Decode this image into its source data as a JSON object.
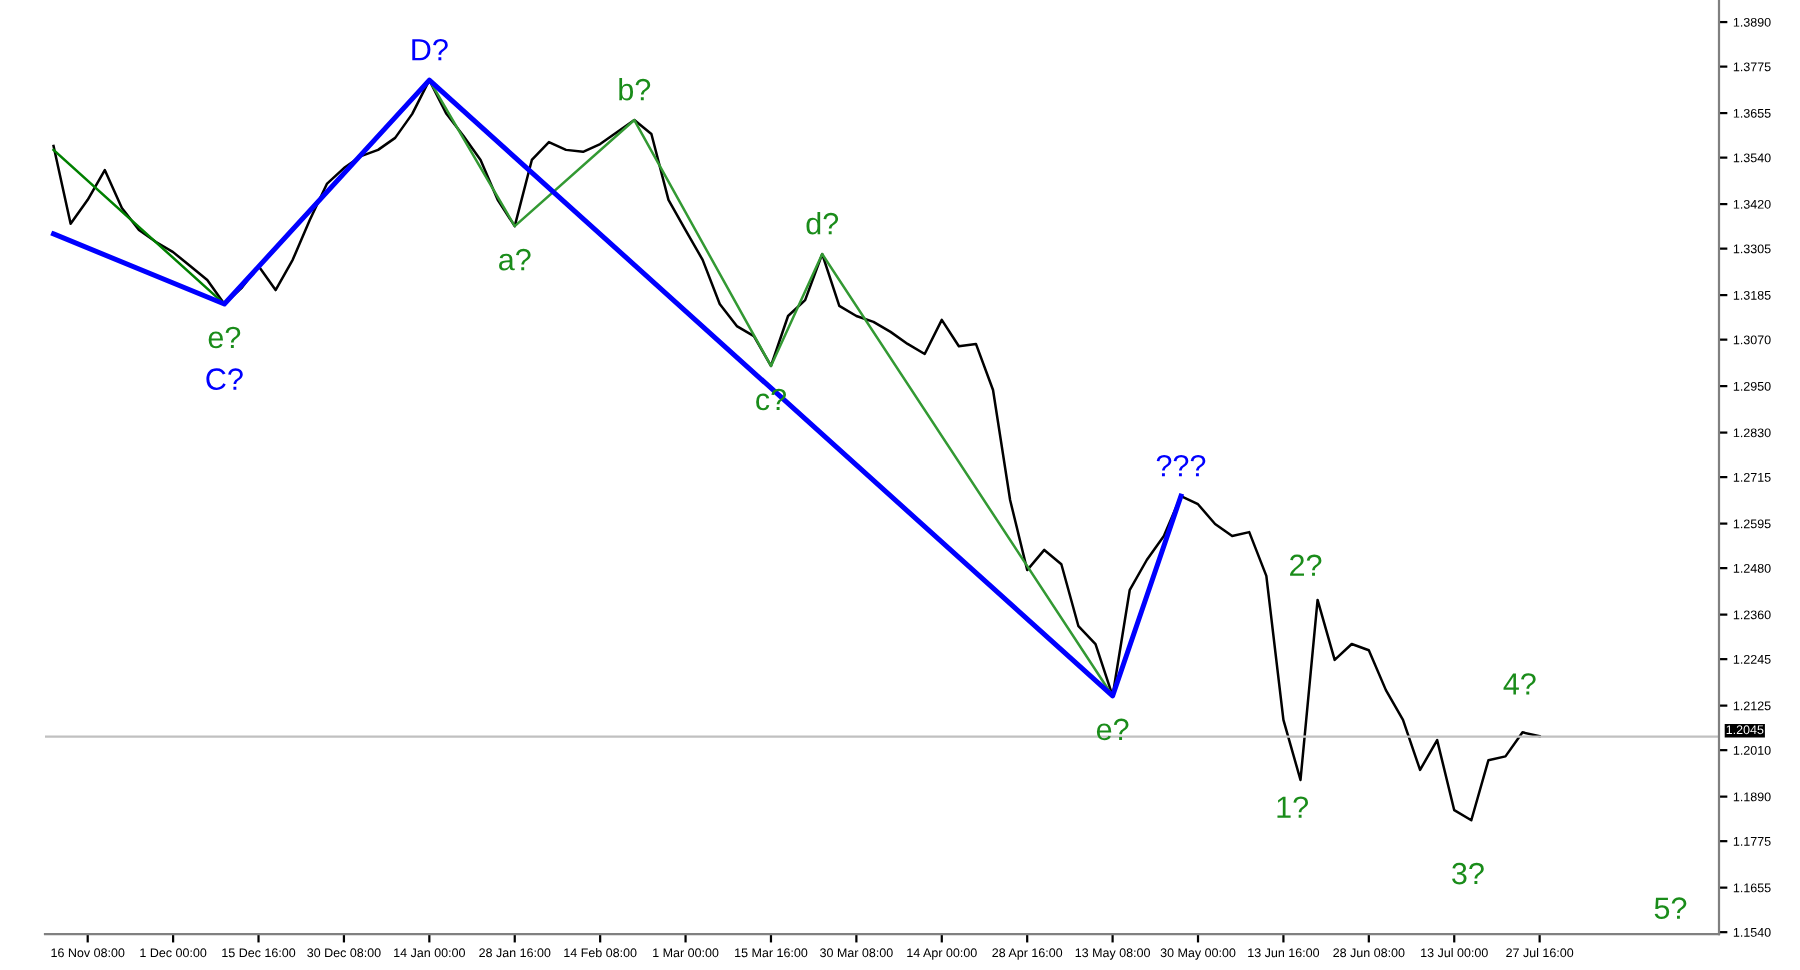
{
  "chart_data": {
    "type": "line",
    "categories": [
      null,
      null,
      "16 Nov 08:00",
      null,
      null,
      null,
      null,
      "1 Dec 00:00",
      null,
      null,
      null,
      null,
      "15 Dec 16:00",
      null,
      null,
      null,
      null,
      "30 Dec 08:00",
      null,
      null,
      null,
      null,
      "14 Jan 00:00",
      null,
      null,
      null,
      null,
      "28 Jan 16:00",
      null,
      null,
      null,
      null,
      "14 Feb 08:00",
      null,
      null,
      null,
      null,
      "1 Mar 00:00",
      null,
      null,
      null,
      null,
      "15 Mar 16:00",
      null,
      null,
      null,
      null,
      "30 Mar 08:00",
      null,
      null,
      null,
      null,
      "14 Apr 00:00",
      null,
      null,
      null,
      null,
      "28 Apr 16:00",
      null,
      null,
      null,
      null,
      "13 May 08:00",
      null,
      null,
      null,
      null,
      "30 May 00:00",
      null,
      null,
      null,
      null,
      "13 Jun 16:00",
      null,
      null,
      null,
      null,
      "28 Jun 08:00",
      null,
      null,
      null,
      null,
      "13 Jul 00:00",
      null,
      null,
      null,
      null,
      "27 Jul 16:00",
      null,
      null,
      null,
      null,
      null,
      null,
      null,
      null,
      null,
      null
    ],
    "ylim": [
      1.1535,
      1.3947
    ],
    "yticks": [
      {
        "value": 1.389,
        "label": "1.3890"
      },
      {
        "value": 1.3775,
        "label": "1.3775"
      },
      {
        "value": 1.3655,
        "label": "1.3655"
      },
      {
        "value": 1.354,
        "label": "1.3540"
      },
      {
        "value": 1.342,
        "label": "1.3420"
      },
      {
        "value": 1.3305,
        "label": "1.3305"
      },
      {
        "value": 1.3185,
        "label": "1.3185"
      },
      {
        "value": 1.307,
        "label": "1.3070"
      },
      {
        "value": 1.295,
        "label": "1.2950"
      },
      {
        "value": 1.283,
        "label": "1.2830"
      },
      {
        "value": 1.2715,
        "label": "1.2715"
      },
      {
        "value": 1.2595,
        "label": "1.2595"
      },
      {
        "value": 1.248,
        "label": "1.2480"
      },
      {
        "value": 1.236,
        "label": "1.2360"
      },
      {
        "value": 1.2245,
        "label": "1.2245"
      },
      {
        "value": 1.2125,
        "label": "1.2125"
      },
      {
        "value": 1.201,
        "label": "1.2010"
      },
      {
        "value": 1.189,
        "label": "1.1890"
      },
      {
        "value": 1.1775,
        "label": "1.1775"
      },
      {
        "value": 1.1655,
        "label": "1.1655"
      },
      {
        "value": 1.154,
        "label": "1.1540"
      }
    ],
    "grid": false,
    "series": [
      {
        "color": "#000000",
        "values": [
          1.357,
          1.3369,
          1.3431,
          1.3508,
          1.341,
          1.3353,
          1.3322,
          1.3296,
          1.326,
          1.3224,
          1.3162,
          1.3203,
          1.326,
          1.3198,
          1.3276,
          1.3379,
          1.3472,
          1.3513,
          1.3544,
          1.356,
          1.3591,
          1.3653,
          1.374,
          1.3653,
          1.3596,
          1.3534,
          1.3431,
          1.3363,
          1.3534,
          1.358,
          1.356,
          1.3555,
          1.3575,
          1.3606,
          1.3637,
          1.3601,
          1.3431,
          1.3353,
          1.3276,
          1.3162,
          1.3105,
          1.3079,
          1.3002,
          1.3131,
          1.3172,
          1.3291,
          1.3157,
          1.3131,
          1.3116,
          1.309,
          1.3059,
          1.3033,
          1.3121,
          1.3053,
          1.3059,
          1.294,
          1.2656,
          1.2475,
          1.2527,
          1.249,
          1.233,
          1.2284,
          1.215,
          1.2423,
          1.2501,
          1.2563,
          1.2666,
          1.2645,
          1.2594,
          1.2563,
          1.2573,
          1.246,
          1.2088,
          1.1933,
          1.2398,
          1.2243,
          1.2284,
          1.2268,
          1.2165,
          1.2088,
          1.1959,
          1.2036,
          1.1855,
          1.1829,
          1.1984,
          1.1994,
          1.2056,
          1.2046,
          null,
          null,
          null,
          null,
          null,
          null,
          null,
          null,
          null,
          null
        ]
      },
      {
        "color": "#008000",
        "values": [
          1.356,
          null,
          null,
          null,
          null,
          null,
          null,
          null,
          null,
          null,
          1.3162,
          null,
          null,
          null,
          null,
          null,
          null,
          null,
          null,
          null,
          null,
          null,
          null,
          null,
          null,
          null,
          null,
          null,
          null,
          null,
          null,
          null,
          null,
          null,
          null,
          null,
          null,
          null,
          null,
          null,
          null,
          null,
          null,
          null,
          null,
          null,
          null,
          null,
          null,
          null,
          null,
          null,
          null,
          null,
          null,
          null,
          null,
          null,
          null,
          null,
          null,
          null,
          null,
          null,
          null,
          null,
          null,
          null,
          null,
          null,
          null,
          null,
          null,
          null,
          null,
          null,
          null,
          null,
          null,
          null,
          null,
          null,
          null,
          null,
          null,
          null,
          null,
          null,
          null,
          null,
          null,
          null,
          null,
          null,
          null,
          null,
          null,
          null
        ],
        "value_labels": [
          null,
          null,
          null,
          null,
          null,
          null,
          null,
          null,
          null,
          null,
          "e?",
          null,
          null,
          null,
          null,
          null,
          null,
          null,
          null,
          null,
          null,
          null,
          null,
          null,
          null,
          null,
          null,
          null,
          null,
          null,
          null,
          null,
          null,
          null,
          null,
          null,
          null,
          null,
          null,
          null,
          null,
          null,
          null,
          null,
          null,
          null,
          null,
          null,
          null,
          null,
          null,
          null,
          null,
          null,
          null,
          null,
          null,
          null,
          null,
          null,
          null,
          null,
          null,
          null,
          null,
          null,
          null,
          null,
          null,
          null,
          null,
          null,
          null,
          null,
          null,
          null,
          null,
          null,
          null,
          null,
          null,
          null,
          null,
          null,
          null,
          null,
          null,
          null,
          null,
          null,
          null,
          null,
          null,
          null,
          null,
          null,
          null,
          null
        ]
      },
      {
        "color": "#339933",
        "values": [
          null,
          null,
          null,
          null,
          null,
          null,
          null,
          null,
          null,
          null,
          null,
          null,
          null,
          null,
          null,
          null,
          null,
          null,
          null,
          null,
          null,
          null,
          1.374,
          null,
          null,
          null,
          null,
          1.3363,
          null,
          null,
          null,
          null,
          null,
          null,
          1.3637,
          null,
          null,
          null,
          null,
          null,
          null,
          null,
          1.3002,
          null,
          null,
          1.3291,
          null,
          null,
          null,
          null,
          null,
          null,
          null,
          null,
          null,
          null,
          null,
          null,
          null,
          null,
          null,
          null,
          1.215,
          null,
          null,
          null,
          null,
          null,
          null,
          null,
          null,
          null,
          null,
          null,
          null,
          null,
          null,
          null,
          null,
          null,
          null,
          null,
          null,
          null,
          null,
          null,
          null,
          null,
          null,
          null,
          null,
          null,
          null,
          null,
          null,
          null,
          null,
          null
        ],
        "value_labels": [
          null,
          null,
          null,
          null,
          null,
          null,
          null,
          null,
          null,
          null,
          null,
          null,
          null,
          null,
          null,
          null,
          null,
          null,
          null,
          null,
          null,
          null,
          null,
          null,
          null,
          null,
          null,
          "a?",
          null,
          null,
          null,
          null,
          null,
          null,
          "b?",
          null,
          null,
          null,
          null,
          null,
          null,
          null,
          "c?",
          null,
          null,
          "d?",
          null,
          null,
          null,
          null,
          null,
          null,
          null,
          null,
          null,
          null,
          null,
          null,
          null,
          null,
          null,
          null,
          "e?",
          null,
          null,
          null,
          null,
          null,
          null,
          null,
          null,
          null,
          null,
          null,
          null,
          null,
          null,
          null,
          null,
          null,
          null,
          null,
          null,
          null,
          null,
          null,
          null,
          null,
          null,
          null,
          null,
          null,
          null,
          null,
          null,
          null,
          null,
          null
        ]
      },
      {
        "color": "#0000ff",
        "values": [
          1.3343,
          null,
          null,
          null,
          null,
          null,
          null,
          null,
          null,
          null,
          1.3162,
          null,
          null,
          null,
          null,
          null,
          null,
          null,
          null,
          null,
          null,
          null,
          1.374,
          null,
          null,
          null,
          null,
          null,
          null,
          null,
          null,
          null,
          null,
          null,
          null,
          null,
          null,
          null,
          null,
          null,
          null,
          null,
          null,
          null,
          null,
          null,
          null,
          null,
          null,
          null,
          null,
          null,
          null,
          null,
          null,
          null,
          null,
          null,
          null,
          null,
          null,
          null,
          1.215,
          null,
          null,
          null,
          1.2666,
          null,
          null,
          null,
          null,
          null,
          null,
          null,
          null,
          null,
          null,
          null,
          null,
          null,
          null,
          null,
          null,
          null,
          null,
          null,
          null,
          null,
          null,
          null,
          null,
          null,
          null,
          null,
          null,
          null,
          null,
          null
        ],
        "value_labels": [
          null,
          null,
          null,
          null,
          null,
          null,
          null,
          null,
          null,
          null,
          "C?",
          null,
          null,
          null,
          null,
          null,
          null,
          null,
          null,
          null,
          null,
          null,
          "D?",
          null,
          null,
          null,
          null,
          null,
          null,
          null,
          null,
          null,
          null,
          null,
          null,
          null,
          null,
          null,
          null,
          null,
          null,
          null,
          null,
          null,
          null,
          null,
          null,
          null,
          null,
          null,
          null,
          null,
          null,
          null,
          null,
          null,
          null,
          null,
          null,
          null,
          null,
          null,
          null,
          null,
          null,
          null,
          "???",
          null,
          null,
          null,
          null,
          null,
          null,
          null,
          null,
          null,
          null,
          null,
          null,
          null,
          null,
          null,
          null,
          null,
          null,
          null,
          null,
          null,
          null,
          null,
          null,
          null,
          null,
          null,
          null,
          null,
          null,
          null
        ]
      }
    ],
    "ref_lines": [
      {
        "axis": "y",
        "value": 1.2045,
        "label": "1.2045",
        "color": "#c0c0c0"
      }
    ],
    "annotations": [
      "1?",
      "2?",
      "3?",
      "4?",
      "5?"
    ]
  }
}
